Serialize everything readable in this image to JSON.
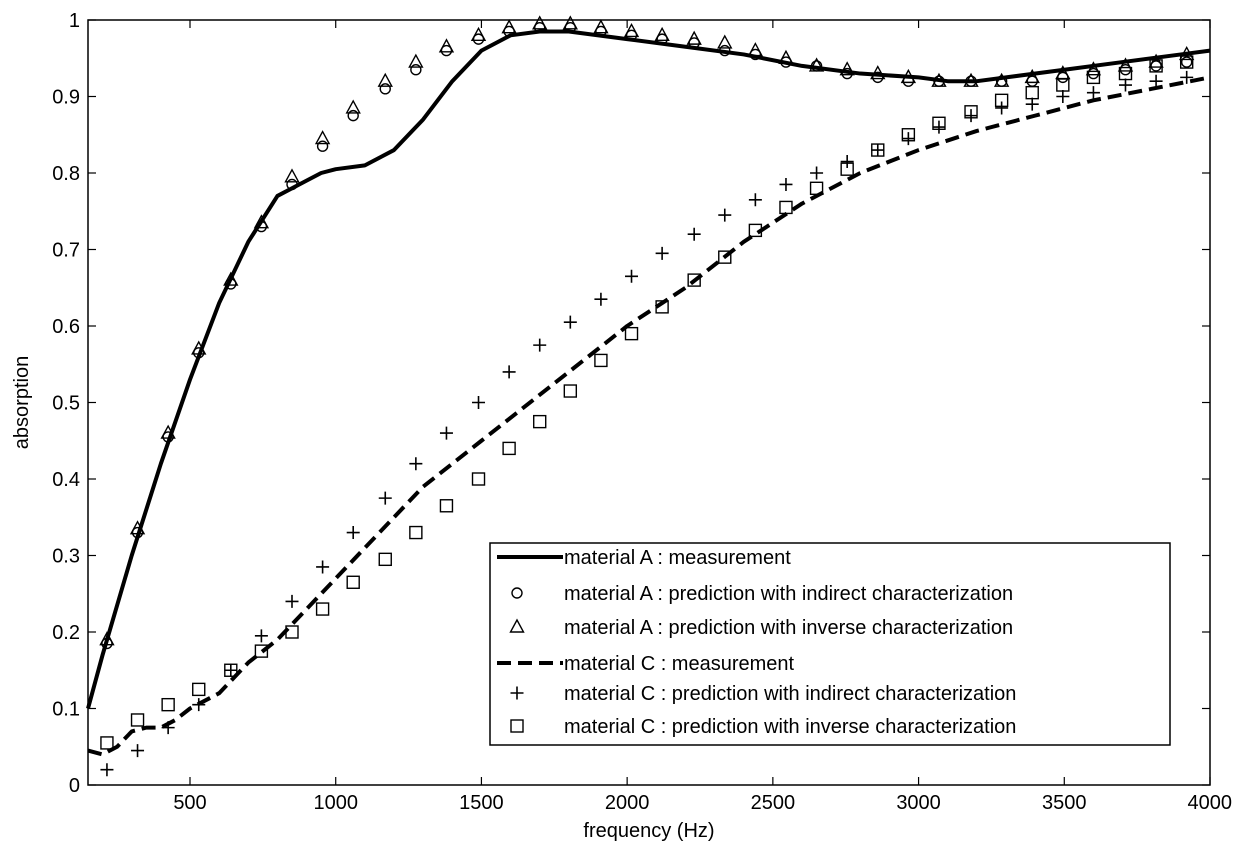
{
  "chart_data": {
    "type": "line",
    "title": "",
    "xlabel": "frequency (Hz)",
    "ylabel": "absorption",
    "xlim": [
      150,
      4000
    ],
    "ylim": [
      0,
      1
    ],
    "xticks": [
      500,
      1000,
      1500,
      2000,
      2500,
      3000,
      3500,
      4000
    ],
    "yticks": [
      0,
      0.1,
      0.2,
      0.3,
      0.4,
      0.5,
      0.6,
      0.7,
      0.8,
      0.9,
      1
    ],
    "grid": false,
    "legend_position": "bottom-right",
    "series": [
      {
        "name": "material A : measurement",
        "style": "solid-line",
        "x": [
          150,
          200,
          300,
          400,
          500,
          600,
          700,
          800,
          900,
          950,
          1000,
          1100,
          1200,
          1300,
          1400,
          1500,
          1600,
          1700,
          1800,
          2000,
          2200,
          2400,
          2600,
          2800,
          3000,
          3100,
          3200,
          3300,
          3500,
          3700,
          3900,
          4000
        ],
        "y": [
          0.1,
          0.17,
          0.3,
          0.42,
          0.53,
          0.63,
          0.71,
          0.77,
          0.79,
          0.8,
          0.805,
          0.81,
          0.83,
          0.87,
          0.92,
          0.96,
          0.98,
          0.985,
          0.985,
          0.975,
          0.965,
          0.955,
          0.94,
          0.93,
          0.925,
          0.92,
          0.92,
          0.925,
          0.935,
          0.945,
          0.955,
          0.96
        ]
      },
      {
        "name": "material A : prediction with indirect characterization",
        "style": "circle",
        "x": [
          215,
          320,
          425,
          530,
          640,
          745,
          850,
          955,
          1060,
          1170,
          1275,
          1380,
          1490,
          1595,
          1700,
          1805,
          1910,
          2015,
          2120,
          2230,
          2335,
          2440,
          2545,
          2650,
          2755,
          2860,
          2965,
          3070,
          3180,
          3285,
          3390,
          3495,
          3600,
          3710,
          3815,
          3920
        ],
        "y": [
          0.185,
          0.33,
          0.455,
          0.565,
          0.655,
          0.73,
          0.785,
          0.835,
          0.875,
          0.91,
          0.935,
          0.96,
          0.975,
          0.985,
          0.99,
          0.99,
          0.985,
          0.98,
          0.975,
          0.97,
          0.96,
          0.955,
          0.945,
          0.94,
          0.93,
          0.925,
          0.92,
          0.92,
          0.92,
          0.92,
          0.92,
          0.925,
          0.93,
          0.935,
          0.94,
          0.945
        ]
      },
      {
        "name": "material A : prediction with inverse characterization",
        "style": "triangle",
        "x": [
          215,
          320,
          425,
          530,
          640,
          745,
          850,
          955,
          1060,
          1170,
          1275,
          1380,
          1490,
          1595,
          1700,
          1805,
          1910,
          2015,
          2120,
          2230,
          2335,
          2440,
          2545,
          2650,
          2755,
          2860,
          2965,
          3070,
          3180,
          3285,
          3390,
          3495,
          3600,
          3710,
          3815,
          3920
        ],
        "y": [
          0.19,
          0.335,
          0.46,
          0.57,
          0.66,
          0.735,
          0.795,
          0.845,
          0.885,
          0.92,
          0.945,
          0.965,
          0.98,
          0.99,
          0.995,
          0.995,
          0.99,
          0.985,
          0.98,
          0.975,
          0.97,
          0.96,
          0.95,
          0.94,
          0.935,
          0.93,
          0.925,
          0.92,
          0.92,
          0.92,
          0.925,
          0.93,
          0.935,
          0.94,
          0.945,
          0.955
        ]
      },
      {
        "name": "material C : measurement",
        "style": "dashed-line",
        "x": [
          150,
          200,
          250,
          300,
          350,
          400,
          450,
          500,
          600,
          700,
          800,
          900,
          1000,
          1100,
          1200,
          1300,
          1400,
          1500,
          1600,
          1800,
          2000,
          2200,
          2400,
          2600,
          2800,
          3000,
          3200,
          3400,
          3600,
          3800,
          4000
        ],
        "y": [
          0.045,
          0.04,
          0.05,
          0.07,
          0.075,
          0.075,
          0.085,
          0.1,
          0.12,
          0.16,
          0.19,
          0.23,
          0.27,
          0.31,
          0.35,
          0.39,
          0.42,
          0.45,
          0.48,
          0.54,
          0.6,
          0.65,
          0.71,
          0.76,
          0.8,
          0.83,
          0.855,
          0.875,
          0.895,
          0.91,
          0.925
        ]
      },
      {
        "name": "material C : prediction with indirect characterization",
        "style": "plus",
        "x": [
          215,
          320,
          425,
          530,
          640,
          745,
          850,
          955,
          1060,
          1170,
          1275,
          1380,
          1490,
          1595,
          1700,
          1805,
          1910,
          2015,
          2120,
          2230,
          2335,
          2440,
          2545,
          2650,
          2755,
          2860,
          2965,
          3070,
          3180,
          3285,
          3390,
          3495,
          3600,
          3710,
          3815,
          3920
        ],
        "y": [
          0.02,
          0.045,
          0.075,
          0.105,
          0.15,
          0.195,
          0.24,
          0.285,
          0.33,
          0.375,
          0.42,
          0.46,
          0.5,
          0.54,
          0.575,
          0.605,
          0.635,
          0.665,
          0.695,
          0.72,
          0.745,
          0.765,
          0.785,
          0.8,
          0.815,
          0.83,
          0.845,
          0.86,
          0.875,
          0.885,
          0.89,
          0.9,
          0.905,
          0.915,
          0.92,
          0.925
        ]
      },
      {
        "name": "material C : prediction with inverse characterization",
        "style": "square",
        "x": [
          215,
          320,
          425,
          530,
          640,
          745,
          850,
          955,
          1060,
          1170,
          1275,
          1380,
          1490,
          1595,
          1700,
          1805,
          1910,
          2015,
          2120,
          2230,
          2335,
          2440,
          2545,
          2650,
          2755,
          2860,
          2965,
          3070,
          3180,
          3285,
          3390,
          3495,
          3600,
          3710,
          3815,
          3920
        ],
        "y": [
          0.055,
          0.085,
          0.105,
          0.125,
          0.15,
          0.175,
          0.2,
          0.23,
          0.265,
          0.295,
          0.33,
          0.365,
          0.4,
          0.44,
          0.475,
          0.515,
          0.555,
          0.59,
          0.625,
          0.66,
          0.69,
          0.725,
          0.755,
          0.78,
          0.805,
          0.83,
          0.85,
          0.865,
          0.88,
          0.895,
          0.905,
          0.915,
          0.925,
          0.93,
          0.94,
          0.945
        ]
      }
    ]
  }
}
